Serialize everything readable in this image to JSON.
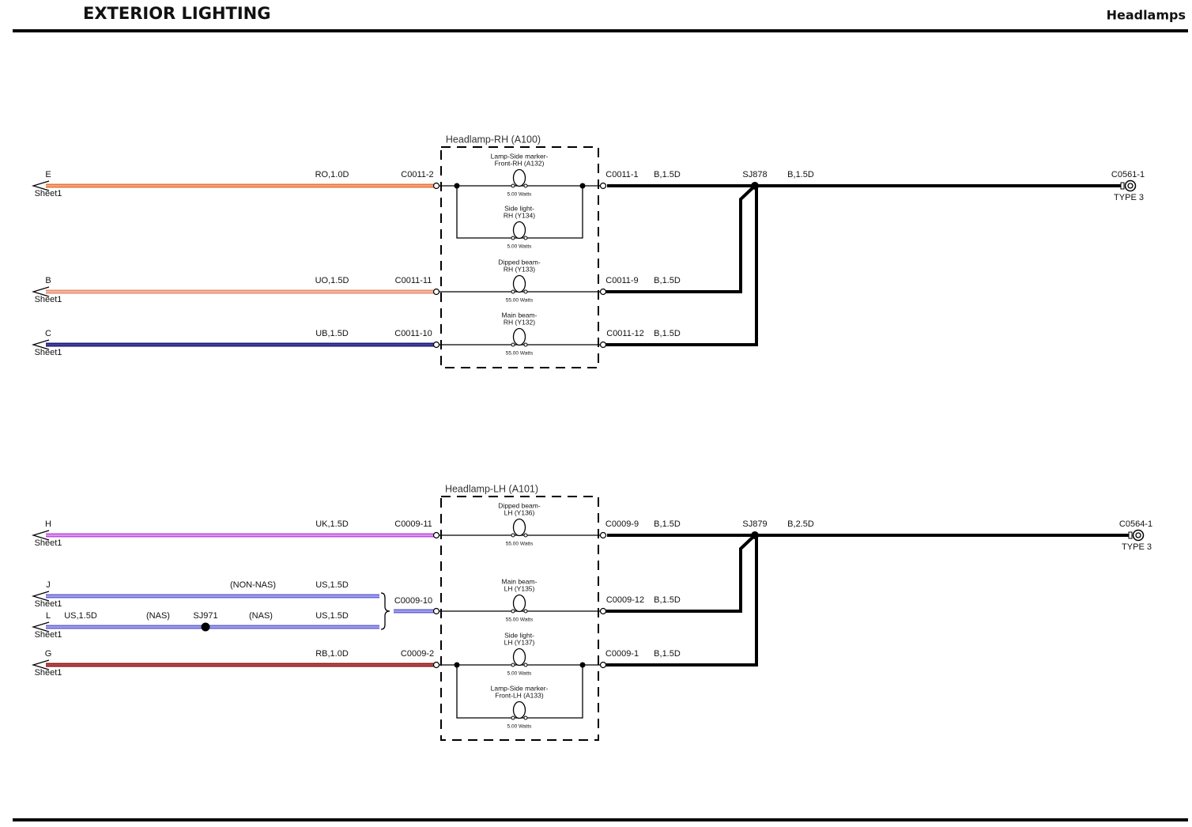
{
  "header": {
    "title": "EXTERIOR LIGHTING",
    "page": "Headlamps"
  },
  "rh": {
    "title": "Headlamp-RH (A100)",
    "inputs": [
      {
        "pin": "E",
        "sheet": "Sheet1",
        "wire": "RO,1.0D",
        "connector": "C0011-2"
      },
      {
        "pin": "B",
        "sheet": "Sheet1",
        "wire": "UO,1.5D",
        "connector": "C0011-11"
      },
      {
        "pin": "C",
        "sheet": "Sheet1",
        "wire": "UB,1.5D",
        "connector": "C0011-10"
      }
    ],
    "lamps": [
      {
        "label": [
          "Lamp-Side marker-",
          "Front-RH (A132)"
        ],
        "rating": "5.00 Watts"
      },
      {
        "label": [
          "Side light-",
          "RH (Y134)"
        ],
        "rating": "5.00 Watts"
      },
      {
        "label": [
          "Dipped beam-",
          "RH (Y133)"
        ],
        "rating": "55.00 Watts"
      },
      {
        "label": [
          "Main beam-",
          "RH (Y132)"
        ],
        "rating": "55.00 Watts"
      }
    ],
    "outputs": [
      {
        "connector": "C0011-1",
        "wire": "B,1.5D"
      },
      {
        "connector": "C0011-9",
        "wire": "B,1.5D"
      },
      {
        "connector": "C0011-12",
        "wire": "B,1.5D"
      }
    ],
    "splice": "SJ878",
    "ground_wire": "B,1.5D",
    "ground": "C0561-1",
    "ground_type": "TYPE 3"
  },
  "lh": {
    "title": "Headlamp-LH (A101)",
    "inputs": [
      {
        "pin": "H",
        "sheet": "Sheet1",
        "wire": "UK,1.5D",
        "connector": "C0009-11"
      },
      {
        "pin": "J",
        "sheet": "Sheet1",
        "variant": "(NON-NAS)",
        "wire": "US,1.5D"
      },
      {
        "pin": "L",
        "sheet": "Sheet1",
        "wire_start": "US,1.5D",
        "variant": "(NAS)",
        "splice": "SJ971",
        "variant_2": "(NAS)",
        "wire": "US,1.5D"
      },
      {
        "pin": "G",
        "sheet": "Sheet1",
        "wire": "RB,1.0D",
        "connector": "C0009-2"
      }
    ],
    "merged_connector": "C0009-10",
    "lamps": [
      {
        "label": [
          "Dipped beam-",
          "LH (Y136)"
        ],
        "rating": "55.00 Watts"
      },
      {
        "label": [
          "Main beam-",
          "LH (Y135)"
        ],
        "rating": "55.00 Watts"
      },
      {
        "label": [
          "Side light-",
          "LH (Y137)"
        ],
        "rating": "5.00 Watts"
      },
      {
        "label": [
          "Lamp-Side marker-",
          "Front-LH (A133)"
        ],
        "rating": "5.00 Watts"
      }
    ],
    "outputs": [
      {
        "connector": "C0009-9",
        "wire": "B,1.5D"
      },
      {
        "connector": "C0009-12",
        "wire": "B,1.5D"
      },
      {
        "connector": "C0009-1",
        "wire": "B,1.5D"
      }
    ],
    "splice": "SJ879",
    "ground_wire": "B,2.5D",
    "ground": "C0564-1",
    "ground_type": "TYPE 3"
  }
}
